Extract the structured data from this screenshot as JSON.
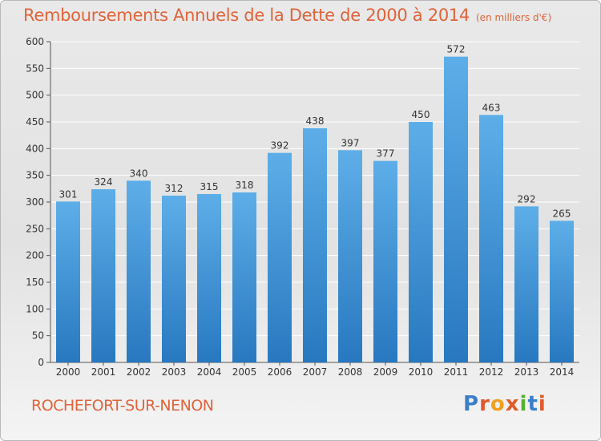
{
  "header": {
    "title": "Remboursements Annuels de la Dette de 2000 à 2014",
    "unit": "(en milliers d'€)"
  },
  "footer": {
    "place": "ROCHEFORT-SUR-NENON",
    "logo": "Proxiti"
  },
  "colors": {
    "bar_top": "#5daee8",
    "bar_bottom": "#2878c0",
    "title": "#e0643a",
    "grid": "#ffffff"
  },
  "chart_data": {
    "type": "bar",
    "title": "Remboursements Annuels de la Dette de 2000 à 2014",
    "xlabel": "",
    "ylabel": "",
    "categories": [
      "2000",
      "2001",
      "2002",
      "2003",
      "2004",
      "2005",
      "2006",
      "2007",
      "2008",
      "2009",
      "2010",
      "2011",
      "2012",
      "2013",
      "2014"
    ],
    "values": [
      301,
      324,
      340,
      312,
      315,
      318,
      392,
      438,
      397,
      377,
      450,
      572,
      463,
      292,
      265
    ],
    "ylim": [
      0,
      600
    ],
    "yticks": [
      0,
      50,
      100,
      150,
      200,
      250,
      300,
      350,
      400,
      450,
      500,
      550,
      600
    ],
    "grid": true,
    "legend": "none"
  }
}
